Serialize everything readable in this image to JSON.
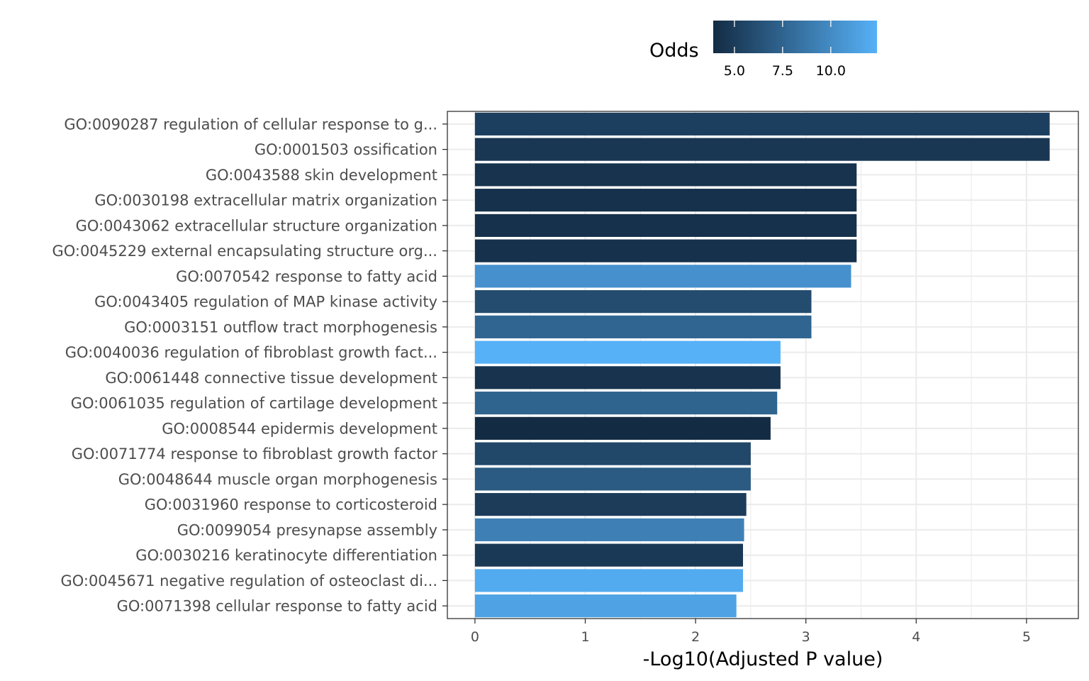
{
  "chart_data": {
    "type": "bar",
    "orientation": "horizontal",
    "xlabel": "-Log10(Adjusted P value)",
    "ylabel": "",
    "xlim": [
      -0.25,
      5.47
    ],
    "xticks": [
      0,
      1,
      2,
      3,
      4,
      5
    ],
    "grid": true,
    "legend": {
      "title": "Odds",
      "placement": "top",
      "type": "colorbar",
      "ticks": [
        5.0,
        7.5,
        10.0
      ],
      "tick_labels": [
        "5.0",
        "7.5",
        "10.0"
      ],
      "range": [
        3.9,
        12.4
      ],
      "color_low": "#132b43",
      "color_high": "#56b1f7"
    },
    "categories": [
      "GO:0090287 regulation of cellular response to g...",
      "GO:0001503 ossification",
      "GO:0043588 skin development",
      "GO:0030198 extracellular matrix organization",
      "GO:0043062 extracellular structure organization",
      "GO:0045229 external encapsulating structure org...",
      "GO:0070542 response to fatty acid",
      "GO:0043405 regulation of MAP kinase activity",
      "GO:0003151 outflow tract morphogenesis",
      "GO:0040036 regulation of fibroblast growth fact...",
      "GO:0061448 connective tissue development",
      "GO:0061035 regulation of cartilage development",
      "GO:0008544 epidermis development",
      "GO:0071774 response to fibroblast growth factor",
      "GO:0048644 muscle organ morphogenesis",
      "GO:0031960 response to corticosteroid",
      "GO:0099054 presynapse assembly",
      "GO:0030216 keratinocyte differentiation",
      "GO:0045671 negative regulation of osteoclast di...",
      "GO:0071398 cellular response to fatty acid"
    ],
    "values": [
      5.21,
      5.21,
      3.46,
      3.46,
      3.46,
      3.46,
      3.41,
      3.05,
      3.05,
      2.77,
      2.77,
      2.74,
      2.68,
      2.5,
      2.5,
      2.46,
      2.44,
      2.43,
      2.43,
      2.37
    ],
    "odds": [
      5.2,
      4.6,
      4.4,
      4.3,
      4.3,
      4.3,
      10.4,
      6.0,
      7.6,
      12.4,
      4.4,
      7.5,
      3.9,
      5.7,
      6.9,
      5.0,
      9.3,
      4.8,
      12.0,
      11.5
    ]
  }
}
